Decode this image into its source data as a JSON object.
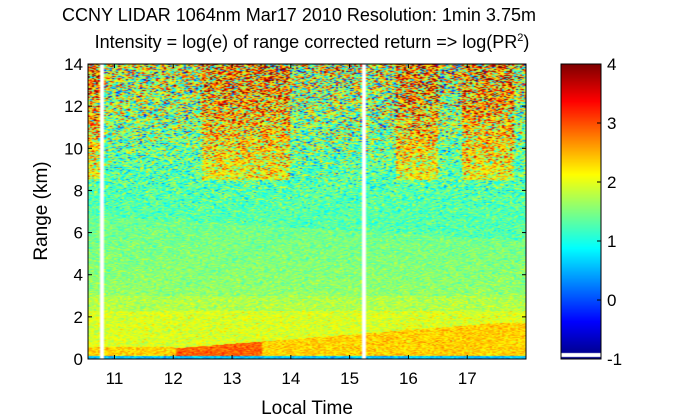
{
  "chart_data": {
    "type": "heatmap",
    "title_line1": "CCNY LIDAR 1064nm Mar17 2010 Resolution: 1min 3.75m",
    "title_line2_prefix": "Intensity = log(e) of range corrected return => log(PR",
    "title_line2_sup": "2",
    "title_line2_suffix": ")",
    "xlabel": "Local Time",
    "ylabel": "Range (km)",
    "xlim": [
      10.55,
      18.0
    ],
    "ylim": [
      0,
      14
    ],
    "xticks": [
      11,
      12,
      13,
      14,
      15,
      16,
      17
    ],
    "yticks": [
      0,
      2,
      4,
      6,
      8,
      10,
      12,
      14
    ],
    "colorbar": {
      "range": [
        -1,
        4
      ],
      "ticks": [
        -1,
        0,
        1,
        2,
        3,
        4
      ],
      "colormap": "jet"
    },
    "colors": {
      "background": "#ffffff",
      "axis": "#000000",
      "gap": "#ffffff"
    },
    "data_gaps_hours": [
      10.75,
      15.2
    ],
    "layers": {
      "surface_layer_top_km": 0.15,
      "mixed_layer_top_km_start": 0.5,
      "mixed_layer_top_km_end": 1.7,
      "residual_layer_top_km_start": 6.8,
      "residual_layer_top_km_end": 5.6
    }
  }
}
